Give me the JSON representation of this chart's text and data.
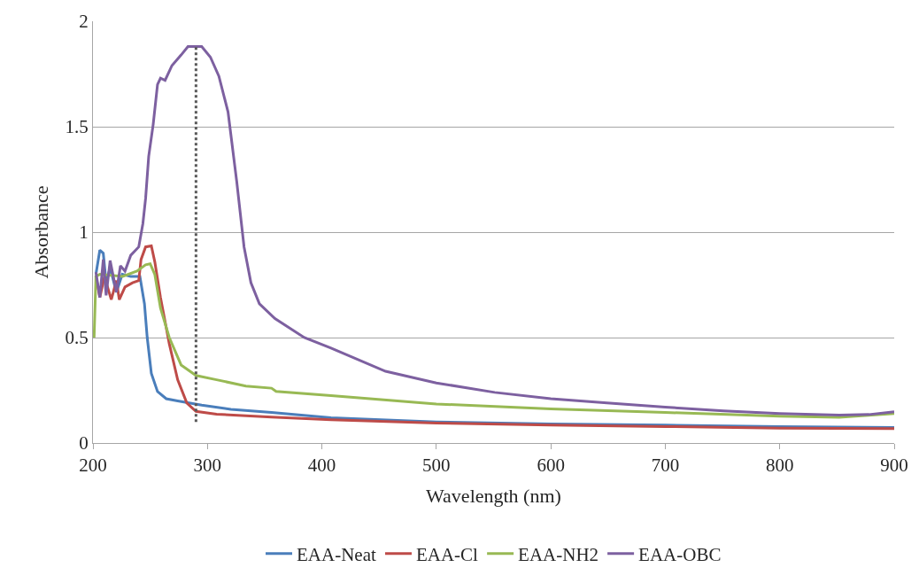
{
  "chart_data": {
    "type": "line",
    "xlabel": "Wavelength (nm)",
    "ylabel": "Absorbance",
    "xlim": [
      200,
      900
    ],
    "xticks": [
      200,
      300,
      400,
      500,
      600,
      700,
      800,
      900
    ],
    "ylim": [
      0,
      2
    ],
    "yticks": [
      0,
      0.5,
      1,
      1.5,
      2
    ],
    "grid": "y",
    "legend": "bottom",
    "marker": "none",
    "line_style": "solid",
    "ref_lines": [
      {
        "axis": "x",
        "value": 290,
        "color": "#595959",
        "line_style": "dotted"
      }
    ],
    "series": [
      {
        "name": "EAA-Neat",
        "color": "#4a7ebb",
        "x": [
          202.6,
          206,
          209,
          211.5,
          215,
          220.5,
          225.6,
          233,
          241,
          245,
          247.4,
          251,
          256.4,
          264,
          274,
          295,
          320.5,
          356,
          408,
          500,
          600,
          700,
          800,
          900
        ],
        "values": [
          0.8,
          0.915,
          0.9,
          0.76,
          0.83,
          0.715,
          0.8,
          0.79,
          0.79,
          0.66,
          0.5,
          0.33,
          0.244,
          0.21,
          0.2,
          0.18,
          0.16,
          0.145,
          0.12,
          0.1,
          0.09,
          0.085,
          0.078,
          0.074
        ]
      },
      {
        "name": "EAA-Cl",
        "color": "#be4b48",
        "x": [
          202.6,
          206,
          210,
          216,
          220.5,
          223,
          228,
          234.6,
          240,
          242,
          246,
          251,
          254,
          259,
          266.7,
          274,
          282,
          290,
          308,
          356,
          408,
          500,
          600,
          700,
          800,
          900
        ],
        "values": [
          0.79,
          0.69,
          0.79,
          0.68,
          0.77,
          0.68,
          0.74,
          0.76,
          0.77,
          0.87,
          0.93,
          0.935,
          0.86,
          0.69,
          0.47,
          0.3,
          0.19,
          0.15,
          0.137,
          0.123,
          0.11,
          0.095,
          0.085,
          0.078,
          0.07,
          0.068
        ]
      },
      {
        "name": "EAA-NH2",
        "color": "#98b954",
        "x": [
          201,
          202.6,
          206,
          226,
          238.5,
          246,
          250,
          254,
          259,
          266.7,
          277,
          290,
          308,
          333.6,
          356,
          360,
          408,
          500,
          600,
          700,
          800,
          852,
          900
        ],
        "values": [
          0.5,
          0.79,
          0.8,
          0.79,
          0.815,
          0.845,
          0.85,
          0.8,
          0.64,
          0.5,
          0.37,
          0.32,
          0.3,
          0.27,
          0.26,
          0.245,
          0.225,
          0.185,
          0.162,
          0.145,
          0.127,
          0.122,
          0.14
        ]
      },
      {
        "name": "EAA-OBC",
        "color": "#7d60a0",
        "x": [
          202.6,
          206,
          209,
          211.5,
          215,
          220.5,
          224,
          228,
          233,
          240,
          243.6,
          246,
          248.7,
          252.6,
          256.4,
          259,
          263,
          269,
          277,
          283,
          295,
          302.6,
          310,
          318,
          325.6,
          332,
          338,
          345.4,
          359,
          384.6,
          408,
          455.6,
          500,
          551,
          600,
          649,
          700,
          751,
          800,
          852,
          878,
          900
        ],
        "values": [
          0.81,
          0.69,
          0.87,
          0.7,
          0.865,
          0.715,
          0.84,
          0.815,
          0.89,
          0.93,
          1.04,
          1.16,
          1.36,
          1.51,
          1.7,
          1.73,
          1.72,
          1.79,
          1.84,
          1.88,
          1.88,
          1.83,
          1.74,
          1.57,
          1.24,
          0.93,
          0.76,
          0.66,
          0.59,
          0.5,
          0.45,
          0.34,
          0.285,
          0.24,
          0.21,
          0.19,
          0.17,
          0.152,
          0.14,
          0.132,
          0.135,
          0.148
        ]
      }
    ]
  }
}
